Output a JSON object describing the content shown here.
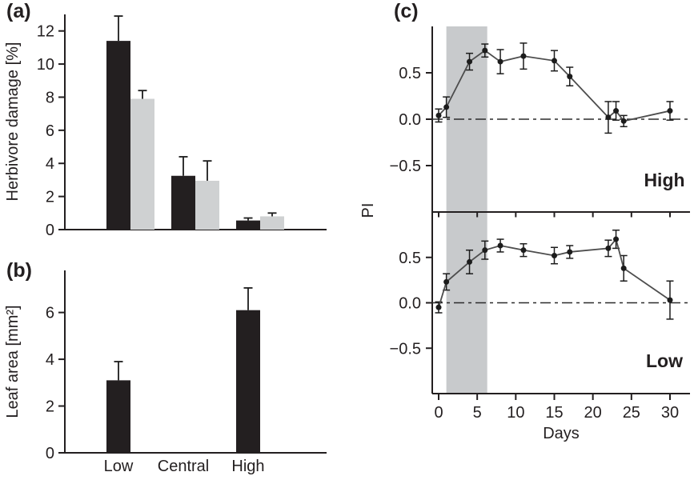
{
  "figure": {
    "background": "#ffffff",
    "colors": {
      "axis": "#231f20",
      "black_bar": "#231f20",
      "gray_bar": "#cfd1d2",
      "shade_band": "#c8cacc",
      "line": "#4d4d4d",
      "marker": "#1c1c1c",
      "error": "#1c1c1c",
      "zero_line": "#2b2b2b"
    }
  },
  "chart_data": [
    {
      "id": "a",
      "type": "bar",
      "panel_label": "(a)",
      "ylabel": "Herbivore damage [%]",
      "xlabel": "",
      "categories": [
        "Low",
        "Central",
        "High"
      ],
      "series": [
        {
          "name": "black",
          "color_key": "black_bar",
          "values": [
            11.4,
            3.25,
            0.55
          ],
          "errors": [
            1.5,
            1.15,
            0.15
          ]
        },
        {
          "name": "gray",
          "color_key": "gray_bar",
          "values": [
            7.9,
            2.95,
            0.8
          ],
          "errors": [
            0.5,
            1.2,
            0.2
          ]
        }
      ],
      "yticks": [
        0,
        2,
        4,
        6,
        8,
        10,
        12
      ],
      "ylim": [
        0,
        13.0
      ],
      "x_axis_labels_shown": false,
      "grid": false
    },
    {
      "id": "b",
      "type": "bar",
      "panel_label": "(b)",
      "ylabel": "Leaf area [mm²]",
      "xlabel": "",
      "categories": [
        "Low",
        "Central",
        "High"
      ],
      "series": [
        {
          "name": "black",
          "color_key": "black_bar",
          "values": [
            3.1,
            null,
            6.1
          ],
          "errors": [
            0.8,
            null,
            0.95
          ]
        }
      ],
      "yticks": [
        0,
        2,
        4,
        6
      ],
      "ylim": [
        0,
        7.8
      ],
      "x_axis_labels_shown": true,
      "grid": false
    },
    {
      "id": "c",
      "type": "line",
      "panel_label": "(c)",
      "ylabel": "PI",
      "xlabel": "Days",
      "x": [
        0,
        1,
        4,
        6,
        8,
        11,
        15,
        17,
        22,
        23,
        24,
        30
      ],
      "xticks": [
        0,
        5,
        10,
        15,
        20,
        25,
        30
      ],
      "xlim": [
        -0.85,
        32.6
      ],
      "ylim": [
        -1,
        1
      ],
      "ytick_values": [
        0.5,
        0.0,
        -0.5
      ],
      "ytick_labels": [
        "0.5",
        "0.0",
        "−0.5"
      ],
      "shaded_band_days": [
        1,
        6.3
      ],
      "zero_line": 0.0,
      "subplots": [
        {
          "name": "High",
          "pi": [
            0.04,
            0.13,
            0.62,
            0.74,
            0.62,
            0.68,
            0.63,
            0.46,
            0.02,
            0.09,
            -0.02,
            0.09
          ],
          "errors": [
            0.07,
            0.11,
            0.09,
            0.07,
            0.13,
            0.14,
            0.11,
            0.1,
            0.17,
            0.1,
            0.06,
            0.1
          ]
        },
        {
          "name": "Low",
          "pi": [
            -0.05,
            0.23,
            0.45,
            0.58,
            0.63,
            0.58,
            0.52,
            0.56,
            0.6,
            0.7,
            0.38,
            0.03
          ],
          "errors": [
            0.06,
            0.09,
            0.13,
            0.1,
            0.07,
            0.07,
            0.09,
            0.07,
            0.09,
            0.1,
            0.14,
            0.21
          ]
        }
      ],
      "legend": false,
      "grid": false
    }
  ]
}
